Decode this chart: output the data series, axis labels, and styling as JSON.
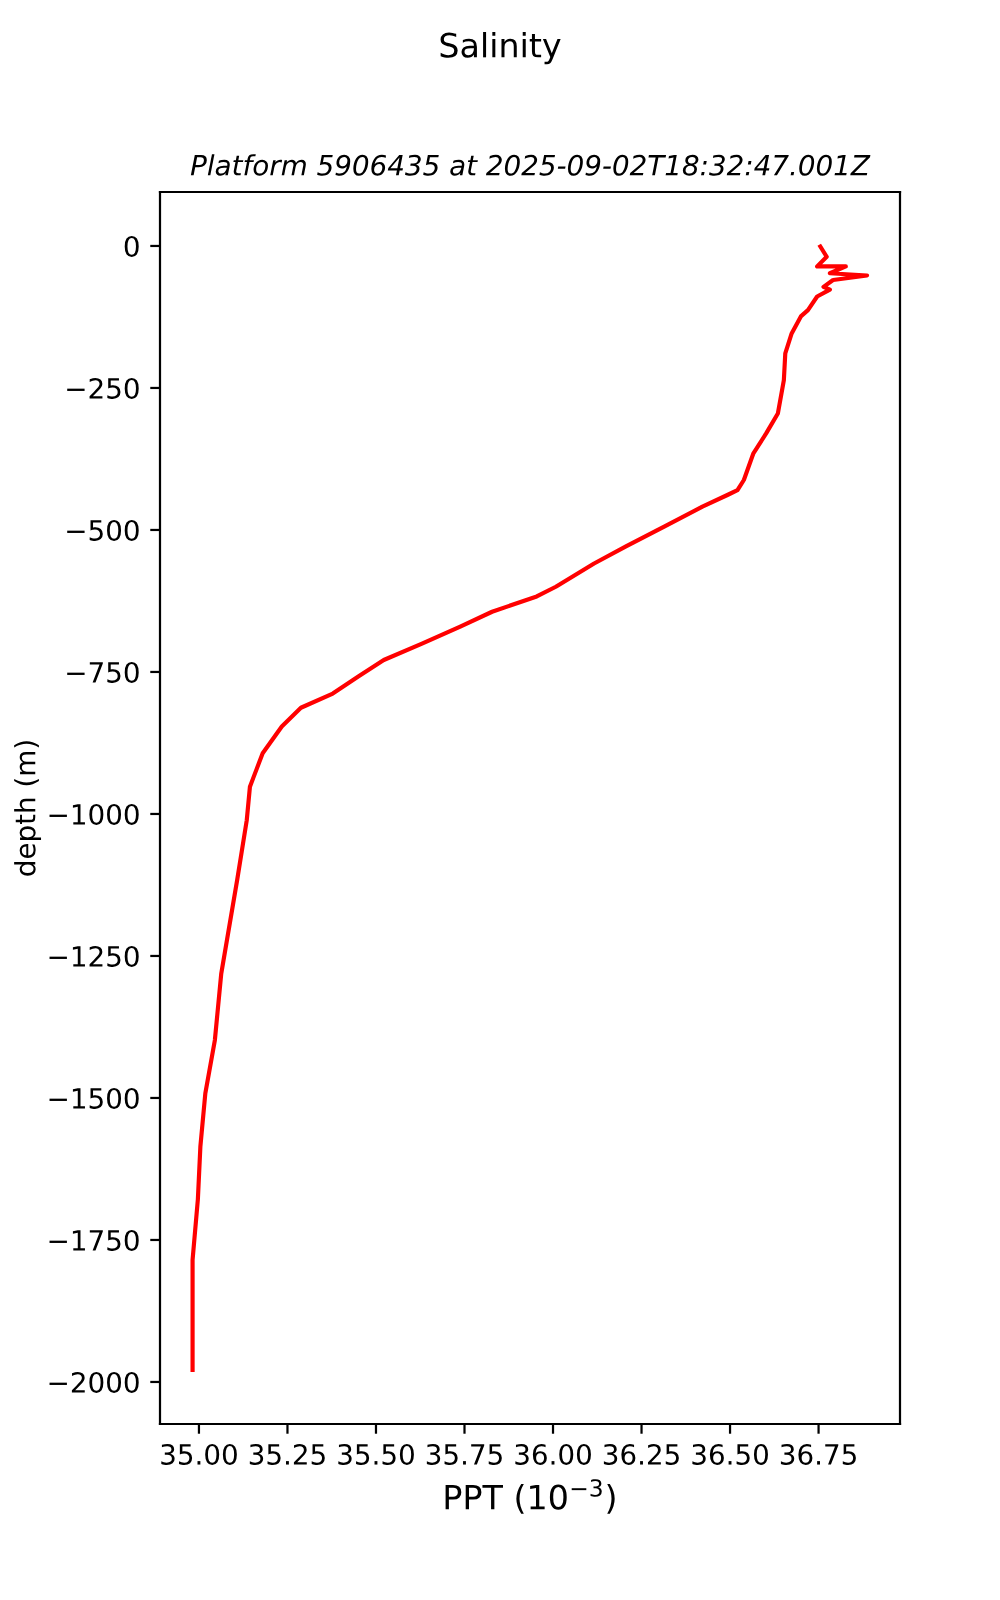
{
  "chart_data": {
    "type": "line",
    "title": "Salinity",
    "subtitle": "Platform 5906435 at 2025-09-02T18:32:47.001Z",
    "xlabel": "PPT (10$^{−3}$)",
    "ylabel": "depth (m)",
    "series": [
      {
        "color": "#ff0000",
        "x": [
          36.755,
          36.773,
          36.746,
          36.827,
          36.782,
          36.887,
          36.791,
          36.764,
          36.782,
          36.746,
          36.72,
          36.7,
          36.674,
          36.656,
          36.652,
          36.635,
          36.602,
          36.566,
          36.539,
          36.521,
          36.494,
          36.422,
          36.314,
          36.206,
          36.116,
          36.008,
          35.954,
          35.828,
          35.738,
          35.63,
          35.522,
          35.45,
          35.378,
          35.288,
          35.234,
          35.18,
          35.144,
          35.135,
          35.108,
          35.063,
          35.045,
          35.018,
          35.004,
          34.997,
          34.982,
          34.982
        ],
        "values": [
          -1,
          -19,
          -36,
          -36,
          -48,
          -52,
          -60,
          -72,
          -77,
          -89,
          -113,
          -124,
          -154,
          -189,
          -236,
          -295,
          -330,
          -365,
          -412,
          -430,
          -438,
          -459,
          -494,
          -529,
          -559,
          -600,
          -617,
          -644,
          -670,
          -700,
          -729,
          -758,
          -788,
          -813,
          -846,
          -893,
          -952,
          -1011,
          -1116,
          -1281,
          -1398,
          -1492,
          -1586,
          -1678,
          -1785,
          -1979
        ]
      }
    ],
    "xlim": [
      34.89,
      36.98
    ],
    "ylim": [
      -2074,
      95
    ],
    "xticks": [
      {
        "value": 35,
        "label": "35.00"
      },
      {
        "value": 35.25,
        "label": "35.25"
      },
      {
        "value": 35.5,
        "label": "35.50"
      },
      {
        "value": 35.75,
        "label": "35.75"
      },
      {
        "value": 36,
        "label": "36.00"
      },
      {
        "value": 36.25,
        "label": "36.25"
      },
      {
        "value": 36.5,
        "label": "36.50"
      },
      {
        "value": 36.75,
        "label": "36.75"
      }
    ],
    "yticks": [
      0,
      {
        "value": -250,
        "label": "−250"
      },
      {
        "value": -500,
        "label": "−500"
      },
      {
        "value": -750,
        "label": "−750"
      },
      {
        "value": -1000,
        "label": "−1000"
      },
      {
        "value": -1250,
        "label": "−1250"
      },
      {
        "value": -1500,
        "label": "−1500"
      },
      {
        "value": -1750,
        "label": "−1750"
      },
      {
        "value": -2000,
        "label": "−2000"
      }
    ],
    "grid": false,
    "marker": "none",
    "line_style": "solid"
  }
}
